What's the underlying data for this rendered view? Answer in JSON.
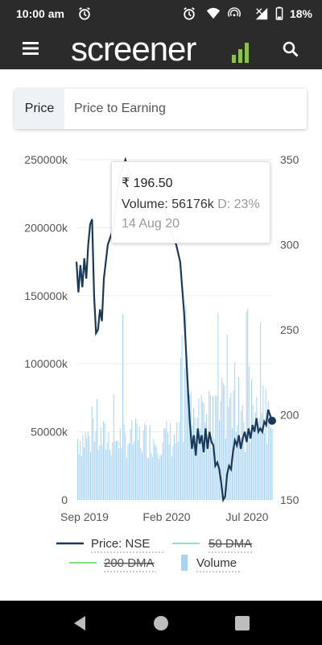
{
  "status_bar": {
    "time": "10:00 am",
    "battery": "18%"
  },
  "app_bar": {
    "logo_text": "screener"
  },
  "tabs": [
    {
      "label": "Price"
    },
    {
      "label": "Price to Earning"
    }
  ],
  "tooltip": {
    "price": "₹ 196.50",
    "volume_label": "Volume: 56176k",
    "delivery": "D: 23%",
    "date": "14 Aug 20"
  },
  "legend": {
    "price": "Price: NSE",
    "dma50": "50 DMA",
    "dma200": "200 DMA",
    "volume": "Volume"
  },
  "colors": {
    "price_line": "#1b3a57",
    "volume_bar": "#a8d4f2",
    "dma50": "#8fe0d8",
    "dma200": "#7ee07e",
    "header": "#2b2b2b"
  },
  "chart_data": {
    "type": "line",
    "x_tick_labels": [
      "Sep 2019",
      "Feb 2020",
      "Jul 2020"
    ],
    "y_left_ticks": [
      "250000k",
      "200000k",
      "150000k",
      "100000k",
      "50000k",
      "0"
    ],
    "y_right_ticks": [
      "350",
      "300",
      "250",
      "200",
      "150"
    ],
    "y_left_range": [
      0,
      250000
    ],
    "y_right_range": [
      150,
      350
    ],
    "price_series": [
      {
        "x": 0.0,
        "y": 290
      },
      {
        "x": 0.01,
        "y": 272
      },
      {
        "x": 0.02,
        "y": 288
      },
      {
        "x": 0.03,
        "y": 275
      },
      {
        "x": 0.04,
        "y": 292
      },
      {
        "x": 0.05,
        "y": 280
      },
      {
        "x": 0.06,
        "y": 300
      },
      {
        "x": 0.07,
        "y": 312
      },
      {
        "x": 0.08,
        "y": 315
      },
      {
        "x": 0.09,
        "y": 270
      },
      {
        "x": 0.1,
        "y": 248
      },
      {
        "x": 0.11,
        "y": 250
      },
      {
        "x": 0.12,
        "y": 262
      },
      {
        "x": 0.13,
        "y": 255
      },
      {
        "x": 0.14,
        "y": 280
      },
      {
        "x": 0.16,
        "y": 300
      },
      {
        "x": 0.19,
        "y": 310
      },
      {
        "x": 0.22,
        "y": 340
      },
      {
        "x": 0.25,
        "y": 350
      },
      {
        "x": 0.33,
        "y": 320
      },
      {
        "x": 0.45,
        "y": 322
      },
      {
        "x": 0.49,
        "y": 305
      },
      {
        "x": 0.51,
        "y": 300
      },
      {
        "x": 0.53,
        "y": 290
      },
      {
        "x": 0.55,
        "y": 260
      },
      {
        "x": 0.57,
        "y": 215
      },
      {
        "x": 0.58,
        "y": 195
      },
      {
        "x": 0.59,
        "y": 180
      },
      {
        "x": 0.6,
        "y": 188
      },
      {
        "x": 0.61,
        "y": 176
      },
      {
        "x": 0.62,
        "y": 192
      },
      {
        "x": 0.63,
        "y": 183
      },
      {
        "x": 0.64,
        "y": 188
      },
      {
        "x": 0.65,
        "y": 178
      },
      {
        "x": 0.66,
        "y": 192
      },
      {
        "x": 0.67,
        "y": 180
      },
      {
        "x": 0.68,
        "y": 190
      },
      {
        "x": 0.69,
        "y": 184
      },
      {
        "x": 0.7,
        "y": 182
      },
      {
        "x": 0.71,
        "y": 170
      },
      {
        "x": 0.72,
        "y": 172
      },
      {
        "x": 0.73,
        "y": 168
      },
      {
        "x": 0.74,
        "y": 160
      },
      {
        "x": 0.75,
        "y": 150
      },
      {
        "x": 0.76,
        "y": 152
      },
      {
        "x": 0.77,
        "y": 165
      },
      {
        "x": 0.78,
        "y": 170
      },
      {
        "x": 0.79,
        "y": 168
      },
      {
        "x": 0.8,
        "y": 178
      },
      {
        "x": 0.81,
        "y": 185
      },
      {
        "x": 0.82,
        "y": 182
      },
      {
        "x": 0.83,
        "y": 188
      },
      {
        "x": 0.84,
        "y": 180
      },
      {
        "x": 0.85,
        "y": 186
      },
      {
        "x": 0.86,
        "y": 190
      },
      {
        "x": 0.87,
        "y": 184
      },
      {
        "x": 0.88,
        "y": 192
      },
      {
        "x": 0.89,
        "y": 186
      },
      {
        "x": 0.9,
        "y": 194
      },
      {
        "x": 0.91,
        "y": 190
      },
      {
        "x": 0.92,
        "y": 198
      },
      {
        "x": 0.93,
        "y": 190
      },
      {
        "x": 0.94,
        "y": 192
      },
      {
        "x": 0.95,
        "y": 190
      },
      {
        "x": 0.96,
        "y": 196
      },
      {
        "x": 0.97,
        "y": 194
      },
      {
        "x": 0.98,
        "y": 203
      },
      {
        "x": 1.0,
        "y": 196.5
      }
    ]
  }
}
